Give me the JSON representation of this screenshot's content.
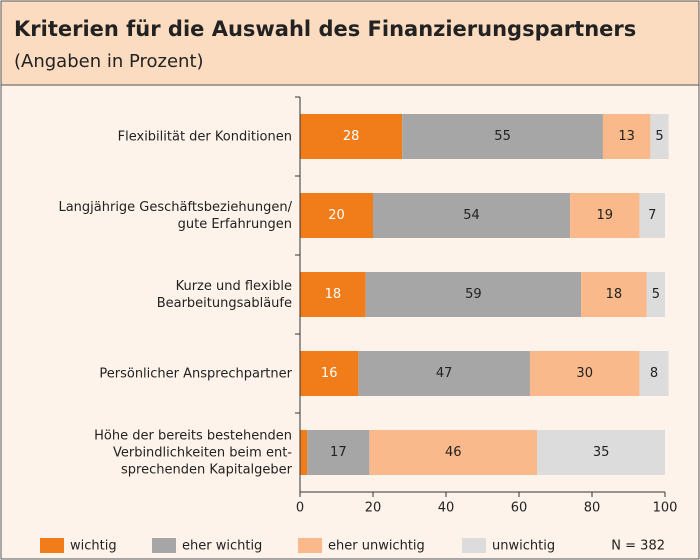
{
  "chart_data": {
    "type": "stacked-barh",
    "title": "Kriterien für die Auswahl des Finanzierungspartners",
    "subtitle": "(Angaben in Prozent)",
    "categories": [
      [
        "Flexibilität der Konditionen"
      ],
      [
        "Langjährige Geschäftsbeziehungen/",
        "gute Erfahrungen"
      ],
      [
        "Kurze und flexible",
        "Bearbeitungsabläufe"
      ],
      [
        "Persönlicher Ansprechpartner"
      ],
      [
        "Höhe der bereits bestehenden",
        "Verbindlichkeiten beim ent-",
        "sprechenden Kapitalgeber"
      ]
    ],
    "series": [
      {
        "name": "wichtig",
        "color": "#f07d1a",
        "label_color": "#ffffff",
        "values": [
          28,
          20,
          18,
          16,
          2
        ]
      },
      {
        "name": "eher wichtig",
        "color": "#a6a6a6",
        "label_color": "#222222",
        "values": [
          55,
          54,
          59,
          47,
          17
        ]
      },
      {
        "name": "eher unwichtig",
        "color": "#f9b98a",
        "label_color": "#222222",
        "values": [
          13,
          19,
          18,
          30,
          46
        ]
      },
      {
        "name": "unwichtig",
        "color": "#dcdcdc",
        "label_color": "#222222",
        "values": [
          5,
          7,
          5,
          8,
          35
        ]
      }
    ],
    "xlim": [
      0,
      100
    ],
    "xticks": [
      0,
      20,
      40,
      60,
      80,
      100
    ],
    "note": "N = 382"
  }
}
